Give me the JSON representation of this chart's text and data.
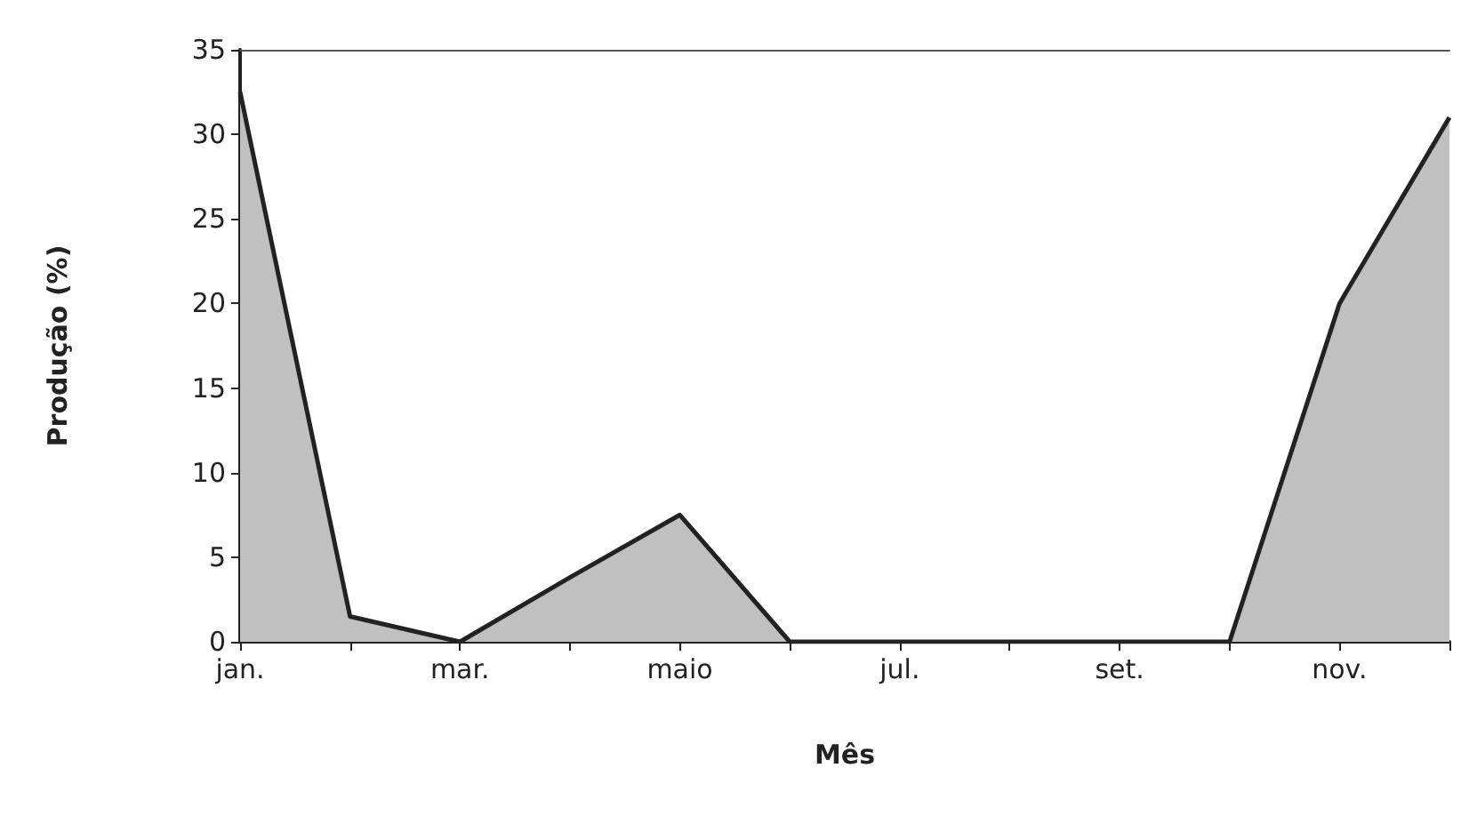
{
  "chart_data": {
    "type": "area",
    "xlabel": "Mês",
    "ylabel": "Produção (%)",
    "categories": [
      "jan.",
      null,
      "mar.",
      null,
      "maio",
      null,
      "jul.",
      null,
      "set.",
      null,
      "nov.",
      null
    ],
    "series": [
      {
        "color": "#c0c0c0",
        "values": [
          32.5,
          1.5,
          0,
          3.8,
          7.5,
          0,
          0,
          0,
          0,
          0,
          20,
          31
        ]
      }
    ],
    "ylim": [
      0,
      35
    ],
    "yticks": [
      0,
      5,
      10,
      15,
      20,
      25,
      30,
      35
    ],
    "grid": false,
    "marker": "none",
    "line_style": "solid"
  }
}
